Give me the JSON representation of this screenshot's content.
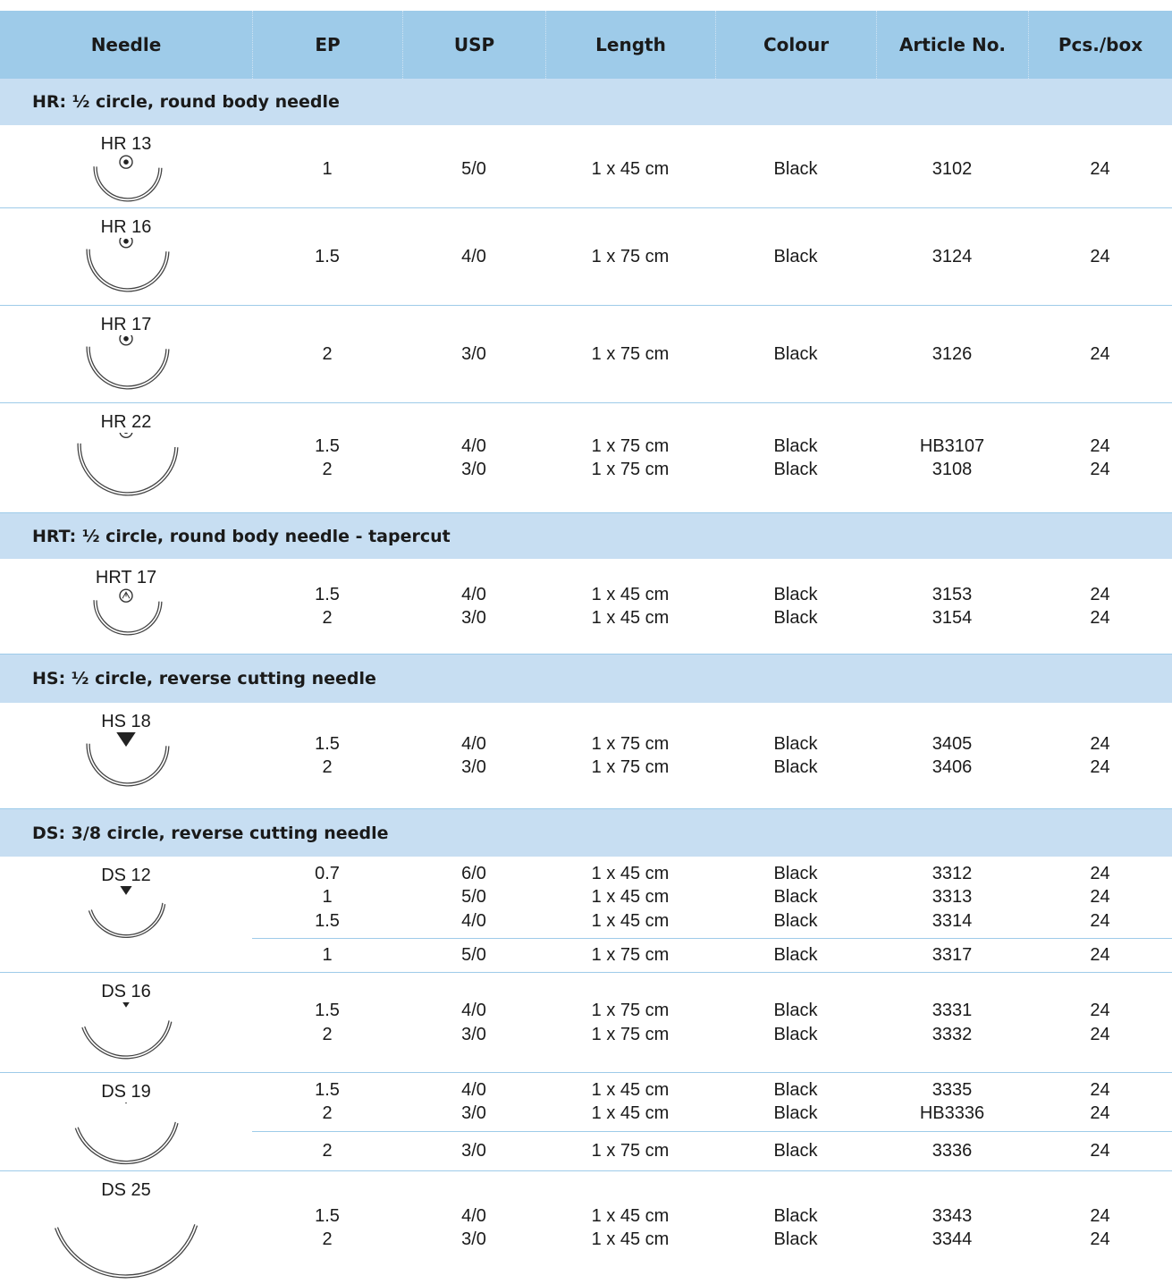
{
  "table": {
    "headers": [
      "Needle",
      "EP",
      "USP",
      "Length",
      "Colour",
      "Article No.",
      "Pcs./box"
    ],
    "sections": [
      {
        "title": "HR: ½ circle, round body needle",
        "needles": [
          {
            "name": "HR 13",
            "groups": [
              [
                [
                  "1",
                  "5/0",
                  "1 x 45 cm",
                  "Black",
                  "3102",
                  "24"
                ]
              ]
            ]
          },
          {
            "name": "HR 16",
            "groups": [
              [
                [
                  "1.5",
                  "4/0",
                  "1 x 75 cm",
                  "Black",
                  "3124",
                  "24"
                ]
              ]
            ]
          },
          {
            "name": "HR 17",
            "groups": [
              [
                [
                  "2",
                  "3/0",
                  "1 x 75 cm",
                  "Black",
                  "3126",
                  "24"
                ]
              ]
            ]
          },
          {
            "name": "HR 22",
            "groups": [
              [
                [
                  "1.5",
                  "4/0",
                  "1 x 75 cm",
                  "Black",
                  "HB3107",
                  "24"
                ],
                [
                  "2",
                  "3/0",
                  "1 x 75 cm",
                  "Black",
                  "3108",
                  "24"
                ]
              ]
            ]
          }
        ]
      },
      {
        "title": "HRT: ½ circle, round body needle - tapercut",
        "needles": [
          {
            "name": "HRT 17",
            "groups": [
              [
                [
                  "1.5",
                  "4/0",
                  "1 x 45 cm",
                  "Black",
                  "3153",
                  "24"
                ],
                [
                  "2",
                  "3/0",
                  "1 x 45 cm",
                  "Black",
                  "3154",
                  "24"
                ]
              ]
            ]
          }
        ]
      },
      {
        "title": "HS: ½ circle, reverse cutting needle",
        "needles": [
          {
            "name": "HS 18",
            "groups": [
              [
                [
                  "1.5",
                  "4/0",
                  "1 x 75 cm",
                  "Black",
                  "3405",
                  "24"
                ],
                [
                  "2",
                  "3/0",
                  "1 x 75 cm",
                  "Black",
                  "3406",
                  "24"
                ]
              ]
            ]
          }
        ]
      },
      {
        "title": "DS: 3/8 circle, reverse cutting needle",
        "needles": [
          {
            "name": "DS 12",
            "groups": [
              [
                [
                  "0.7",
                  "6/0",
                  "1 x 45 cm",
                  "Black",
                  "3312",
                  "24"
                ],
                [
                  "1",
                  "5/0",
                  "1 x 45 cm",
                  "Black",
                  "3313",
                  "24"
                ],
                [
                  "1.5",
                  "4/0",
                  "1 x 45 cm",
                  "Black",
                  "3314",
                  "24"
                ]
              ],
              [
                [
                  "1",
                  "5/0",
                  "1 x 75 cm",
                  "Black",
                  "3317",
                  "24"
                ]
              ]
            ]
          },
          {
            "name": "DS 16",
            "groups": [
              [
                [
                  "1.5",
                  "4/0",
                  "1 x 75 cm",
                  "Black",
                  "3331",
                  "24"
                ],
                [
                  "2",
                  "3/0",
                  "1 x 75 cm",
                  "Black",
                  "3332",
                  "24"
                ]
              ]
            ]
          },
          {
            "name": "DS 19",
            "groups": [
              [
                [
                  "1.5",
                  "4/0",
                  "1 x 45 cm",
                  "Black",
                  "3335",
                  "24"
                ],
                [
                  "2",
                  "3/0",
                  "1 x 45 cm",
                  "Black",
                  "HB3336",
                  "24"
                ]
              ],
              [
                [
                  "2",
                  "3/0",
                  "1 x 75 cm",
                  "Black",
                  "3336",
                  "24"
                ]
              ]
            ]
          },
          {
            "name": "DS 25",
            "groups": [
              [
                [
                  "1.5",
                  "4/0",
                  "1 x 45 cm",
                  "Black",
                  "3343",
                  "24"
                ],
                [
                  "2",
                  "3/0",
                  "1 x 45 cm",
                  "Black",
                  "3344",
                  "24"
                ]
              ]
            ]
          }
        ]
      }
    ]
  }
}
